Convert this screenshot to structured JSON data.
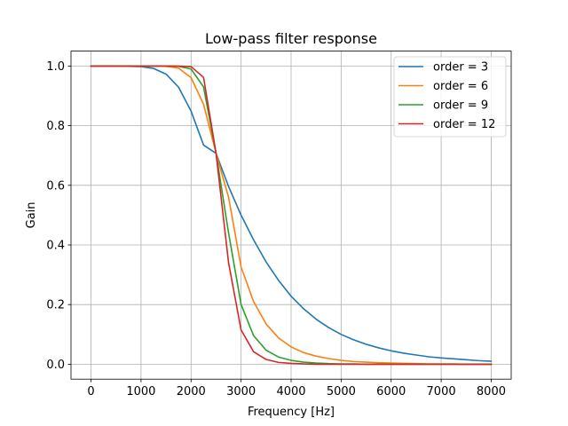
{
  "chart_data": {
    "type": "line",
    "title": "Low-pass filter response",
    "xlabel": "Frequency [Hz]",
    "ylabel": "Gain",
    "xlim": [
      -400,
      8400
    ],
    "ylim": [
      -0.05,
      1.05
    ],
    "xticks": [
      0,
      1000,
      2000,
      3000,
      4000,
      5000,
      6000,
      7000,
      8000
    ],
    "xtick_labels": [
      "0",
      "1000",
      "2000",
      "3000",
      "4000",
      "5000",
      "6000",
      "7000",
      "8000"
    ],
    "yticks": [
      0.0,
      0.2,
      0.4,
      0.6,
      0.8,
      1.0
    ],
    "ytick_labels": [
      "0.0",
      "0.2",
      "0.4",
      "0.6",
      "0.8",
      "1.0"
    ],
    "grid": true,
    "legend_position": "top-right",
    "x": [
      0,
      250,
      500,
      750,
      1000,
      1250,
      1500,
      1750,
      2000,
      2250,
      2500,
      2750,
      3000,
      3250,
      3500,
      3750,
      4000,
      4250,
      4500,
      4750,
      5000,
      5250,
      5500,
      5750,
      6000,
      6250,
      6500,
      6750,
      7000,
      7250,
      7500,
      7750,
      8000
    ],
    "series": [
      {
        "name": "order = 3",
        "color": "#1f77b4",
        "values": [
          1.0,
          1.0,
          1.0,
          0.999,
          0.998,
          0.992,
          0.973,
          0.929,
          0.849,
          0.735,
          0.707,
          0.596,
          0.5,
          0.417,
          0.343,
          0.281,
          0.228,
          0.186,
          0.151,
          0.123,
          0.1,
          0.082,
          0.067,
          0.055,
          0.045,
          0.037,
          0.031,
          0.025,
          0.021,
          0.018,
          0.015,
          0.012,
          0.01
        ]
      },
      {
        "name": "order = 6",
        "color": "#ff7f0e",
        "values": [
          1.0,
          1.0,
          1.0,
          1.0,
          1.0,
          1.0,
          0.999,
          0.993,
          0.961,
          0.872,
          0.707,
          0.56,
          0.326,
          0.21,
          0.135,
          0.088,
          0.058,
          0.039,
          0.027,
          0.019,
          0.013,
          0.009,
          0.007,
          0.005,
          0.004,
          0.003,
          0.002,
          0.001,
          0.001,
          0.001,
          0.0,
          0.0,
          0.0
        ]
      },
      {
        "name": "order = 9",
        "color": "#2ca02c",
        "values": [
          1.0,
          1.0,
          1.0,
          1.0,
          1.0,
          1.0,
          1.0,
          0.999,
          0.99,
          0.93,
          0.707,
          0.44,
          0.2,
          0.096,
          0.047,
          0.024,
          0.013,
          0.007,
          0.004,
          0.002,
          0.001,
          0.001,
          0.0,
          0.0,
          0.0,
          0.0,
          0.0,
          0.0,
          0.0,
          0.0,
          0.0,
          0.0,
          0.0
        ]
      },
      {
        "name": "order = 12",
        "color": "#d62728",
        "values": [
          1.0,
          1.0,
          1.0,
          1.0,
          1.0,
          1.0,
          1.0,
          1.0,
          0.998,
          0.962,
          0.707,
          0.34,
          0.115,
          0.042,
          0.016,
          0.006,
          0.003,
          0.001,
          0.0,
          0.0,
          0.0,
          0.0,
          0.0,
          0.0,
          0.0,
          0.0,
          0.0,
          0.0,
          0.0,
          0.0,
          0.0,
          0.0,
          0.0
        ]
      }
    ]
  }
}
